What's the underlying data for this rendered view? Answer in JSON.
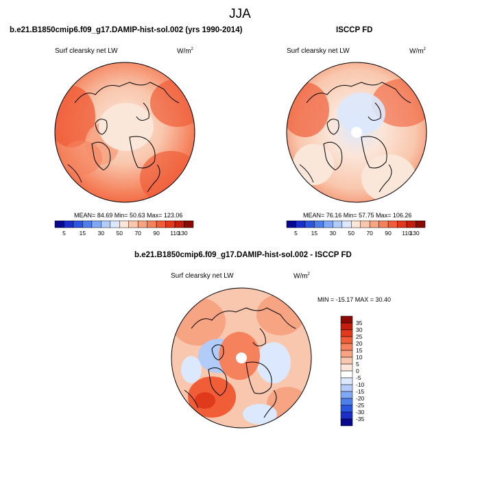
{
  "figure": {
    "title": "JJA"
  },
  "panels": {
    "model": {
      "title": "b.e21.B1850cmip6.f09_g17.DAMIP-hist-sol.002 (yrs 1990-2014)",
      "variable": "Surf clearsky net LW",
      "units_base": "W/m",
      "units_exp": "2",
      "stats": "MEAN=  84.69  Min=  50.63  Max= 123.06"
    },
    "obs": {
      "title": "ISCCP FD",
      "variable": "Surf clearsky net LW",
      "units_base": "W/m",
      "units_exp": "2",
      "stats": "MEAN=  76.16  Min=  57.75  Max= 106.26"
    },
    "diff": {
      "title": "b.e21.B1850cmip6.f09_g17.DAMIP-hist-sol.002 - ISCCP FD",
      "variable": "Surf clearsky net LW",
      "units_base": "W/m",
      "units_exp": "2",
      "stats": "MIN = -15.17 MAX =  30.40"
    }
  },
  "colorbars": {
    "abs": {
      "orientation": "horizontal",
      "labels": [
        "5",
        "15",
        "30",
        "50",
        "70",
        "90",
        "110",
        "130"
      ],
      "colors": [
        "#08088f",
        "#1a2fc7",
        "#2a56e0",
        "#4f7fec",
        "#80a8f4",
        "#b2ccfa",
        "#dce8fd",
        "#fbe6da",
        "#f9c7ad",
        "#f7a483",
        "#f5825d",
        "#f05d37",
        "#e0391b",
        "#c31d0b",
        "#8c0a04"
      ]
    },
    "diff": {
      "orientation": "vertical",
      "labels": [
        "35",
        "30",
        "25",
        "20",
        "15",
        "10",
        "5",
        "0",
        "-5",
        "-10",
        "-15",
        "-20",
        "-25",
        "-30",
        "-35"
      ],
      "colors": [
        "#8c0a04",
        "#c31d0b",
        "#e0391b",
        "#f05d37",
        "#f5825d",
        "#f7a483",
        "#f9c7ad",
        "#fbe6da",
        "#ffffff",
        "#dce8fd",
        "#b2ccfa",
        "#80a8f4",
        "#4f7fec",
        "#2a56e0",
        "#1a2fc7",
        "#08088f"
      ]
    }
  }
}
